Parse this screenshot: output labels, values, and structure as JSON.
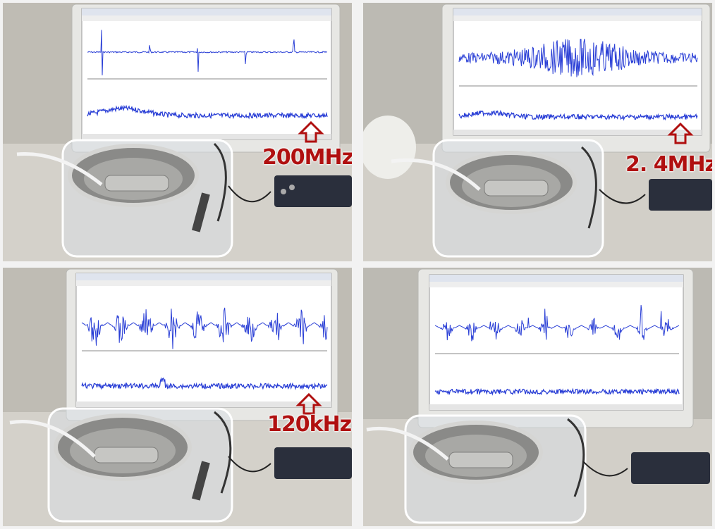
{
  "photos": [
    {
      "label": "200MHz",
      "signal": "spikes"
    },
    {
      "label": "2. 4MHz",
      "signal": "noise-burst"
    },
    {
      "label": "120kHz",
      "signal": "bursts"
    },
    {
      "label": "",
      "signal": "spiky-bursts"
    }
  ],
  "colors": {
    "waveform": "#2a3fd6",
    "annotation": "#b01010",
    "screen": "#ffffff",
    "monitor_bezel": "#e6e6e3",
    "desk": "#cfccc5"
  },
  "icons": {
    "arrow": "up-arrow-outline-icon"
  }
}
